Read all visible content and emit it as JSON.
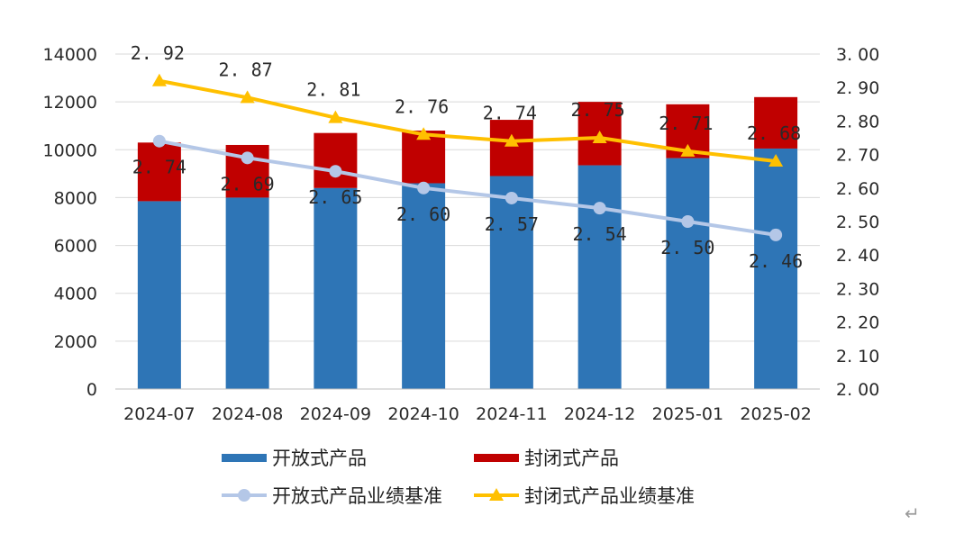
{
  "chart_data": {
    "type": "bar",
    "stacked": true,
    "categories": [
      "2024-07",
      "2024-08",
      "2024-09",
      "2024-10",
      "2024-11",
      "2024-12",
      "2025-01",
      "2025-02"
    ],
    "series": [
      {
        "name": "开放式产品",
        "axis": "left",
        "kind": "bar",
        "color": "#2e75b6",
        "values": [
          7850,
          8000,
          8400,
          8600,
          8900,
          9350,
          9650,
          10050
        ]
      },
      {
        "name": "封闭式产品",
        "axis": "left",
        "kind": "bar",
        "color": "#c00000",
        "values": [
          2450,
          2200,
          2300,
          2200,
          2350,
          2650,
          2250,
          2150
        ]
      },
      {
        "name": "开放式产品业绩基准",
        "axis": "right",
        "kind": "line",
        "marker": "circle",
        "color": "#b4c7e7",
        "values": [
          2.74,
          2.69,
          2.65,
          2.6,
          2.57,
          2.54,
          2.5,
          2.46
        ],
        "labels": [
          "2. 74",
          "2. 69",
          "2. 65",
          "2. 60",
          "2. 57",
          "2. 54",
          "2. 50",
          "2. 46"
        ]
      },
      {
        "name": "封闭式产品业绩基准",
        "axis": "right",
        "kind": "line",
        "marker": "triangle",
        "color": "#ffc000",
        "values": [
          2.92,
          2.87,
          2.81,
          2.76,
          2.74,
          2.75,
          2.71,
          2.68
        ],
        "labels": [
          "2. 92",
          "2. 87",
          "2. 81",
          "2. 76",
          "2. 74",
          "2. 75",
          "2. 71",
          "2. 68"
        ]
      }
    ],
    "y_left": {
      "min": 0,
      "max": 14000,
      "ticks": [
        "0",
        "2000",
        "4000",
        "6000",
        "8000",
        "10000",
        "12000",
        "14000"
      ]
    },
    "y_right": {
      "min": 2.0,
      "max": 3.0,
      "ticks": [
        "2. 00",
        "2. 10",
        "2. 20",
        "2. 30",
        "2. 40",
        "2. 50",
        "2. 60",
        "2. 70",
        "2. 80",
        "2. 90",
        "3. 00"
      ]
    },
    "grid": true,
    "legend_position": "bottom"
  },
  "decor": {
    "return_symbol": "↵"
  }
}
